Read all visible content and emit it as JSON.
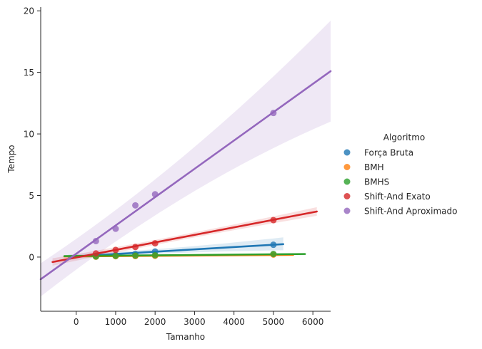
{
  "chart_data": {
    "type": "scatter",
    "xlabel": "Tamanho",
    "ylabel": "Tempo",
    "xlim": [
      -900,
      6450
    ],
    "ylim": [
      -4.4,
      20.3
    ],
    "xticks": [
      0,
      1000,
      2000,
      3000,
      4000,
      5000,
      6000
    ],
    "yticks": [
      0,
      5,
      10,
      15,
      20
    ],
    "legend_title": "Algoritmo",
    "legend_position": "center-right",
    "grid": false,
    "series": [
      {
        "name": "Força Bruta",
        "color": "#1f77b4",
        "x": [
          500,
          1000,
          1500,
          2000,
          5000
        ],
        "y": [
          0.08,
          0.15,
          0.25,
          0.45,
          1.0
        ],
        "fit_x": [
          -200,
          5250
        ],
        "fit_y": [
          0.02,
          1.05
        ],
        "ci_low": [
          -0.15,
          0.55
        ],
        "ci_high": [
          0.2,
          1.6
        ]
      },
      {
        "name": "BMH",
        "color": "#ff7f0e",
        "x": [
          500,
          1000,
          1500,
          2000,
          5000
        ],
        "y": [
          0.03,
          0.07,
          0.08,
          0.1,
          0.2
        ],
        "fit_x": [
          -300,
          5500
        ],
        "fit_y": [
          0.05,
          0.18
        ],
        "ci_low": [
          0.0,
          0.1
        ],
        "ci_high": [
          0.1,
          0.28
        ]
      },
      {
        "name": "BMHS",
        "color": "#2ca02c",
        "x": [
          500,
          1000,
          1500,
          2000,
          5000
        ],
        "y": [
          0.05,
          0.1,
          0.12,
          0.15,
          0.25
        ],
        "fit_x": [
          -300,
          5800
        ],
        "fit_y": [
          0.08,
          0.25
        ],
        "ci_low": [
          0.03,
          0.18
        ],
        "ci_high": [
          0.13,
          0.32
        ]
      },
      {
        "name": "Shift-And Exato",
        "color": "#d62728",
        "x": [
          500,
          1000,
          1500,
          2000,
          5000
        ],
        "y": [
          0.3,
          0.58,
          0.82,
          1.12,
          3.0
        ],
        "fit_x": [
          -600,
          6100
        ],
        "fit_y": [
          -0.4,
          3.7
        ],
        "ci_low": [
          -0.7,
          3.35
        ],
        "ci_high": [
          -0.1,
          4.05
        ]
      },
      {
        "name": "Shift-And Aproximado",
        "color": "#9467bd",
        "x": [
          500,
          1000,
          1500,
          2000,
          5000
        ],
        "y": [
          1.3,
          2.3,
          4.2,
          5.1,
          11.7
        ],
        "fit_x": [
          -900,
          6450
        ],
        "fit_y": [
          -1.8,
          15.1
        ],
        "ci_low": [
          -3.2,
          11.0
        ],
        "ci_high": [
          -0.5,
          19.2
        ]
      }
    ]
  }
}
